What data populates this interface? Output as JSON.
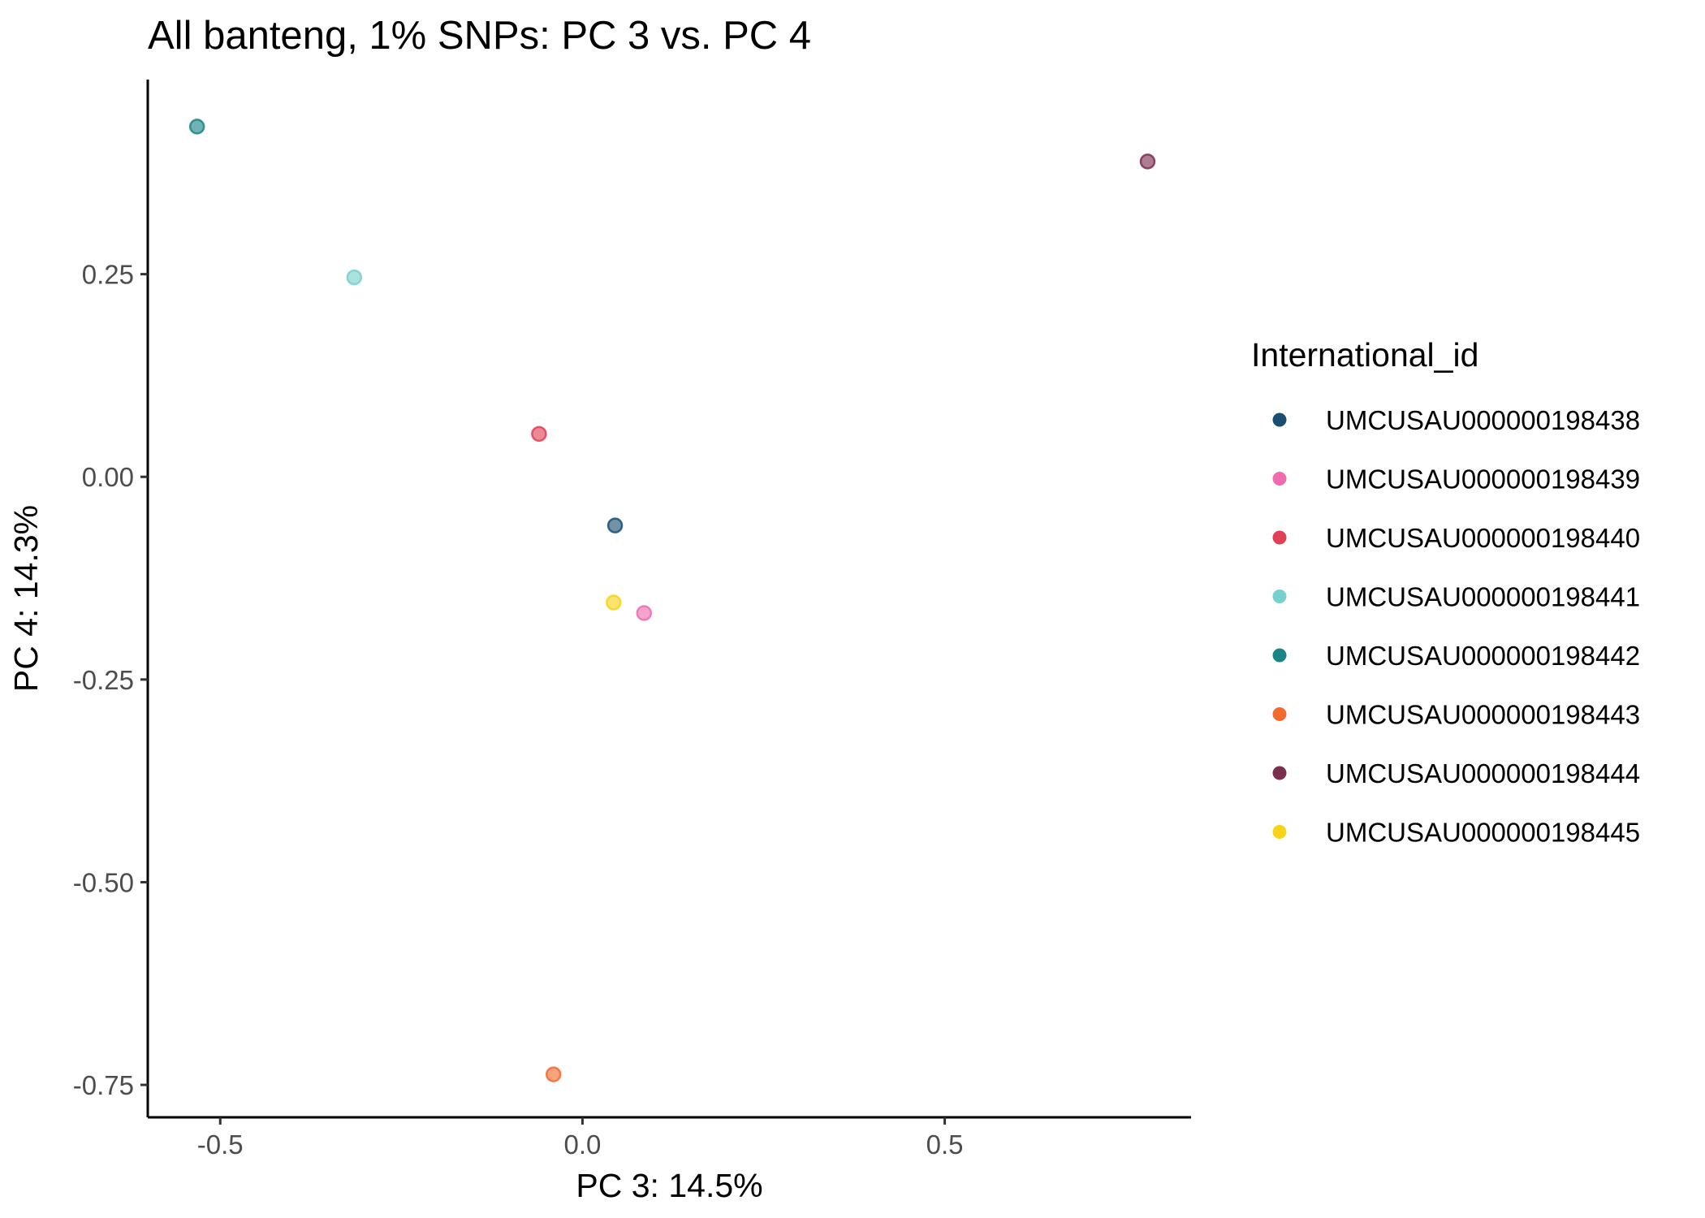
{
  "chart_data": {
    "type": "scatter",
    "title": "All banteng, 1% SNPs: PC 3 vs. PC 4",
    "xlabel": "PC 3: 14.5%",
    "ylabel": "PC 4: 14.3%",
    "xlim": [
      -0.6,
      0.84
    ],
    "ylim": [
      -0.79,
      0.49
    ],
    "xticks": [
      -0.5,
      0.0,
      0.5
    ],
    "xtick_labels": [
      "-0.5",
      "0.0",
      "0.5"
    ],
    "yticks": [
      -0.75,
      -0.5,
      -0.25,
      0.0,
      0.25
    ],
    "ytick_labels": [
      "-0.75",
      "-0.50",
      "-0.25",
      "0.00",
      "0.25"
    ],
    "grid": false,
    "legend": {
      "title": "International_id",
      "position": "right"
    },
    "series": [
      {
        "name": "UMCUSAU000000198438",
        "color": "#1B4F72",
        "points": [
          [
            0.045,
            -0.06
          ]
        ]
      },
      {
        "name": "UMCUSAU000000198439",
        "color": "#F06BAE",
        "points": [
          [
            0.085,
            -0.168
          ]
        ]
      },
      {
        "name": "UMCUSAU000000198440",
        "color": "#E04055",
        "points": [
          [
            -0.06,
            0.053
          ]
        ]
      },
      {
        "name": "UMCUSAU000000198441",
        "color": "#78D0CC",
        "points": [
          [
            -0.315,
            0.246
          ]
        ]
      },
      {
        "name": "UMCUSAU000000198442",
        "color": "#1A8585",
        "points": [
          [
            -0.532,
            0.432
          ]
        ]
      },
      {
        "name": "UMCUSAU000000198443",
        "color": "#F26A30",
        "points": [
          [
            -0.04,
            -0.737
          ]
        ]
      },
      {
        "name": "UMCUSAU000000198444",
        "color": "#7B2E50",
        "points": [
          [
            0.78,
            0.389
          ]
        ]
      },
      {
        "name": "UMCUSAU000000198445",
        "color": "#F7D417",
        "points": [
          [
            0.043,
            -0.155
          ]
        ]
      }
    ]
  }
}
